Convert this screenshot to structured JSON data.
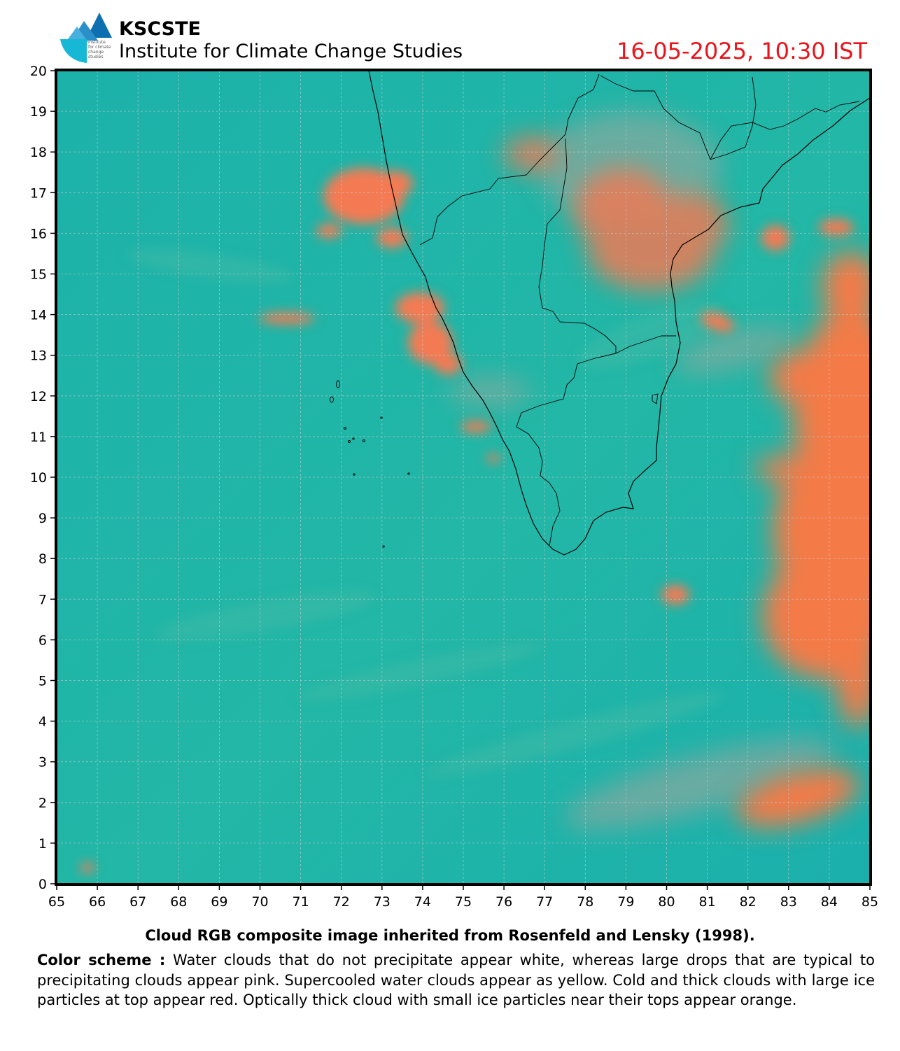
{
  "header": {
    "org_name": "KSCSTE",
    "institute_name": "Institute for Climate Change Studies",
    "datetime": "16-05-2025, 10:30 IST",
    "logo_text": [
      "institute",
      "for climate",
      "change",
      "studies"
    ]
  },
  "map": {
    "x_ticks": [
      "65",
      "66",
      "67",
      "68",
      "69",
      "70",
      "71",
      "72",
      "73",
      "74",
      "75",
      "76",
      "77",
      "78",
      "79",
      "80",
      "81",
      "82",
      "83",
      "84",
      "85"
    ],
    "y_ticks": [
      "20",
      "19",
      "18",
      "17",
      "16",
      "15",
      "14",
      "13",
      "12",
      "11",
      "10",
      "9",
      "8",
      "7",
      "6",
      "5",
      "4",
      "3",
      "2",
      "1",
      "0"
    ],
    "x_range": [
      65,
      85
    ],
    "y_range": [
      0,
      20
    ],
    "grid": true,
    "colors": {
      "background": "#1db3a8",
      "cloud_orange": "#f47a52",
      "cloud_pink": "#e58a8a",
      "coastline": "#000000"
    }
  },
  "footer": {
    "caption": "Cloud RGB composite image inherited from Rosenfeld and Lensky (1998).",
    "scheme_title": "Color scheme :",
    "scheme_text": " Water  clouds  that do not precipitate appear  white, whereas large drops that are typical  to  precipitating  clouds  appear  pink.  Supercooled water  clouds appear as yellow. Cold and thick clouds with large ice particles at top appear red. Optically thick cloud with small ice particles near their tops appear orange."
  }
}
